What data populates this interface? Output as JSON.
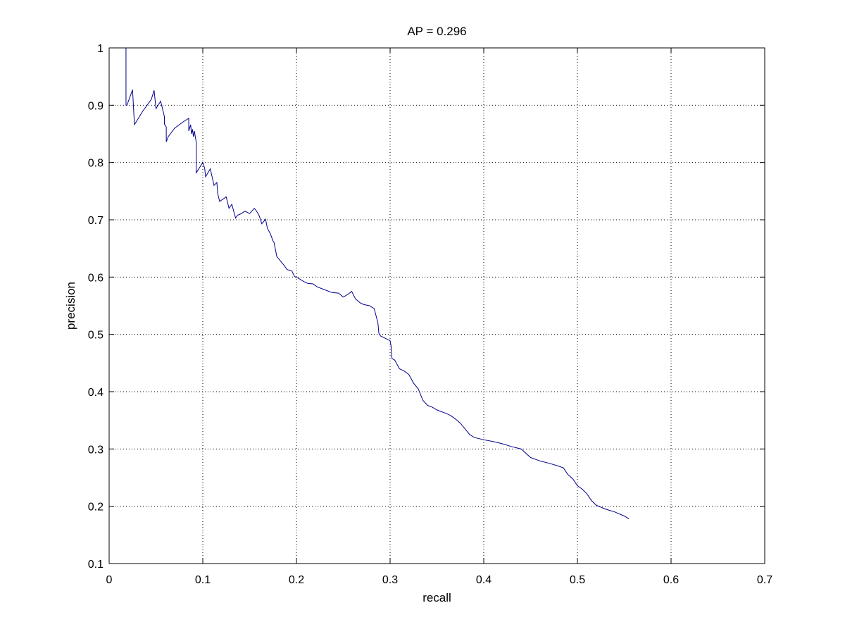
{
  "chart_data": {
    "type": "line",
    "title": "AP = 0.296",
    "xlabel": "recall",
    "ylabel": "precision",
    "xlim": [
      0,
      0.7
    ],
    "ylim": [
      0.1,
      1
    ],
    "xticks": [
      0,
      0.1,
      0.2,
      0.3,
      0.4,
      0.5,
      0.6,
      0.7
    ],
    "yticks": [
      0.1,
      0.2,
      0.3,
      0.4,
      0.5,
      0.6,
      0.7,
      0.8,
      0.9,
      1
    ],
    "xtick_labels": [
      "0",
      "0.1",
      "0.2",
      "0.3",
      "0.4",
      "0.5",
      "0.6",
      "0.7"
    ],
    "ytick_labels": [
      "0.1",
      "0.2",
      "0.3",
      "0.4",
      "0.5",
      "0.6",
      "0.7",
      "0.8",
      "0.9",
      "1"
    ],
    "grid": true,
    "grid_style": "dotted",
    "line_color": "#00008b",
    "series": [
      {
        "x": [
          0.018,
          0.018,
          0.019,
          0.025,
          0.027,
          0.036,
          0.045,
          0.048,
          0.05,
          0.055,
          0.059,
          0.059,
          0.061,
          0.061,
          0.063,
          0.07,
          0.08,
          0.085,
          0.085,
          0.087,
          0.088,
          0.089,
          0.09,
          0.091,
          0.093,
          0.093,
          0.1,
          0.102,
          0.103,
          0.108,
          0.112,
          0.115,
          0.116,
          0.118,
          0.125,
          0.128,
          0.131,
          0.135,
          0.137,
          0.14,
          0.145,
          0.15,
          0.155,
          0.157,
          0.16,
          0.163,
          0.167,
          0.169,
          0.172,
          0.175,
          0.176,
          0.179,
          0.182,
          0.187,
          0.19,
          0.195,
          0.198,
          0.202,
          0.208,
          0.212,
          0.218,
          0.222,
          0.23,
          0.238,
          0.245,
          0.25,
          0.255,
          0.259,
          0.263,
          0.268,
          0.272,
          0.278,
          0.283,
          0.287,
          0.288,
          0.29,
          0.295,
          0.3,
          0.301,
          0.302,
          0.305,
          0.31,
          0.315,
          0.32,
          0.325,
          0.33,
          0.335,
          0.34,
          0.345,
          0.35,
          0.355,
          0.36,
          0.365,
          0.37,
          0.375,
          0.38,
          0.385,
          0.39,
          0.395,
          0.4,
          0.41,
          0.42,
          0.43,
          0.44,
          0.45,
          0.46,
          0.47,
          0.48,
          0.485,
          0.49,
          0.495,
          0.5,
          0.505,
          0.51,
          0.515,
          0.52,
          0.53,
          0.54,
          0.55,
          0.555
        ],
        "y": [
          1.0,
          0.9,
          0.9,
          0.927,
          0.866,
          0.89,
          0.91,
          0.926,
          0.894,
          0.907,
          0.88,
          0.867,
          0.862,
          0.836,
          0.845,
          0.86,
          0.872,
          0.877,
          0.855,
          0.866,
          0.85,
          0.858,
          0.845,
          0.855,
          0.835,
          0.782,
          0.8,
          0.79,
          0.775,
          0.789,
          0.76,
          0.765,
          0.745,
          0.732,
          0.74,
          0.72,
          0.727,
          0.703,
          0.708,
          0.71,
          0.715,
          0.711,
          0.72,
          0.716,
          0.708,
          0.693,
          0.701,
          0.685,
          0.676,
          0.663,
          0.661,
          0.636,
          0.63,
          0.62,
          0.613,
          0.611,
          0.601,
          0.598,
          0.592,
          0.589,
          0.588,
          0.583,
          0.578,
          0.573,
          0.572,
          0.565,
          0.57,
          0.575,
          0.562,
          0.555,
          0.552,
          0.55,
          0.545,
          0.52,
          0.502,
          0.497,
          0.493,
          0.489,
          0.48,
          0.458,
          0.455,
          0.44,
          0.436,
          0.43,
          0.415,
          0.405,
          0.385,
          0.376,
          0.373,
          0.368,
          0.365,
          0.362,
          0.358,
          0.352,
          0.345,
          0.335,
          0.325,
          0.32,
          0.318,
          0.316,
          0.313,
          0.309,
          0.304,
          0.3,
          0.285,
          0.279,
          0.275,
          0.27,
          0.267,
          0.255,
          0.248,
          0.236,
          0.23,
          0.222,
          0.21,
          0.202,
          0.195,
          0.19,
          0.183,
          0.178
        ]
      }
    ]
  }
}
